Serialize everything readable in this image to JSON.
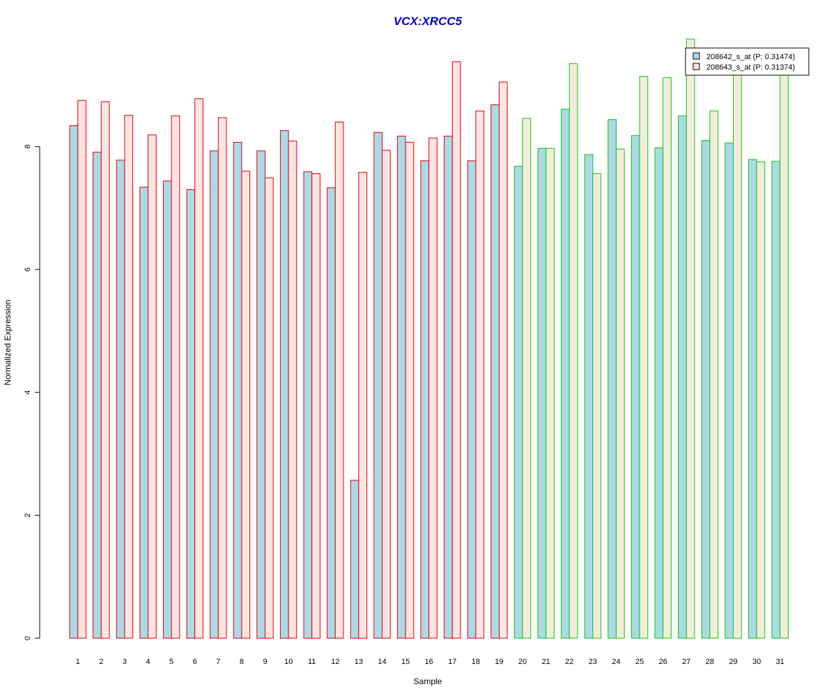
{
  "chart_data": {
    "type": "bar",
    "title": "VCX:XRCC5",
    "xlabel": "Sample",
    "ylabel": "Normalized Expression",
    "ylim": [
      0,
      9.8
    ],
    "yticks": [
      "0",
      "2",
      "4",
      "6",
      "8"
    ],
    "categories": [
      "1",
      "2",
      "3",
      "4",
      "5",
      "6",
      "7",
      "8",
      "9",
      "10",
      "11",
      "12",
      "13",
      "14",
      "15",
      "16",
      "17",
      "18",
      "19",
      "20",
      "21",
      "22",
      "23",
      "24",
      "25",
      "26",
      "27",
      "28",
      "29",
      "30",
      "31"
    ],
    "series": [
      {
        "name": "208642_s_at (P: 0.31474)",
        "fill": "#add8e6",
        "values": [
          8.34,
          7.91,
          7.78,
          7.34,
          7.44,
          7.3,
          7.93,
          8.07,
          7.93,
          8.26,
          7.59,
          7.33,
          2.57,
          8.23,
          8.17,
          7.77,
          8.17,
          7.77,
          8.68,
          7.68,
          7.97,
          8.61,
          7.87,
          8.44,
          8.18,
          7.98,
          8.5,
          8.1,
          8.06,
          7.79,
          7.76
        ]
      },
      {
        "name": "208643_s_at (P: 0.31374)",
        "fill": "#ffe4e1",
        "values": [
          8.75,
          8.73,
          8.51,
          8.19,
          8.5,
          8.78,
          8.47,
          7.6,
          7.49,
          8.09,
          7.56,
          8.4,
          7.58,
          7.94,
          8.07,
          8.14,
          9.38,
          8.58,
          9.05,
          8.46,
          7.97,
          9.35,
          7.56,
          7.96,
          9.14,
          9.12,
          9.75,
          8.58,
          9.2,
          7.75,
          9.2
        ]
      }
    ],
    "group_fill_2": "#f5ebdc",
    "group_colors": {
      "red": "#dd0000",
      "green": "#00cc00"
    },
    "group_red_samples": 19,
    "group_green_samples": 12,
    "legend_position": "top-right",
    "grid": false
  }
}
